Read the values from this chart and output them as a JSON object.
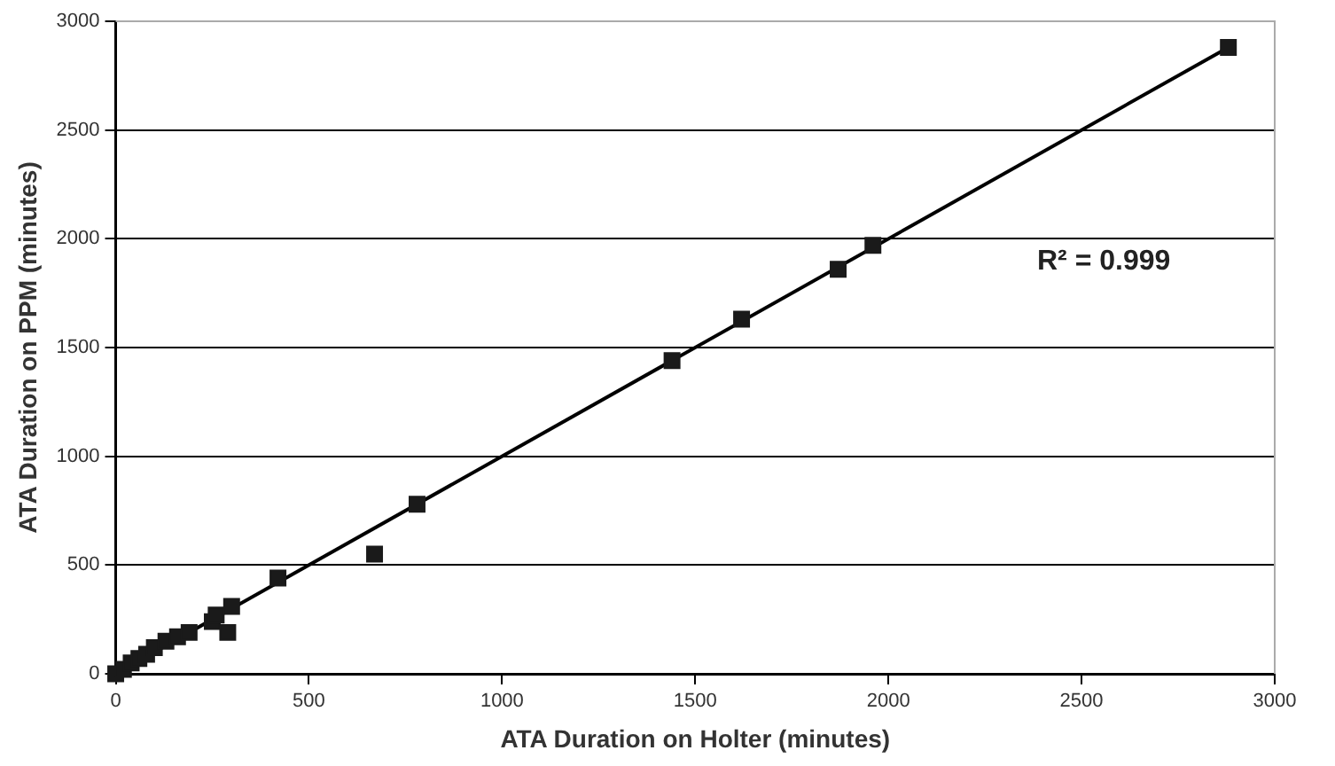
{
  "chart_data": {
    "type": "scatter",
    "xlabel": "ATA Duration on Holter (minutes)",
    "ylabel": "ATA Duration on PPM (minutes)",
    "xlim": [
      0,
      3000
    ],
    "xticks": [
      0,
      500,
      1000,
      1500,
      2000,
      2500,
      3000
    ],
    "ylim": [
      0,
      3000
    ],
    "yticks": [
      0,
      500,
      1000,
      1500,
      2000,
      2500,
      3000
    ],
    "grid": "y",
    "legend": false,
    "marker": "square",
    "series": [
      {
        "color": "#1a1a1a",
        "x": [
          0,
          20,
          40,
          60,
          80,
          100,
          130,
          160,
          190,
          250,
          260,
          290,
          300,
          420,
          670,
          780,
          1440,
          1620,
          1870,
          1960,
          2880
        ],
        "values": [
          0,
          20,
          50,
          70,
          90,
          120,
          150,
          170,
          190,
          240,
          270,
          190,
          310,
          440,
          550,
          780,
          1440,
          1630,
          1860,
          1970,
          2880
        ]
      },
      {
        "type": "line",
        "color": "#000000",
        "marker": "none",
        "x": [
          0,
          2880
        ],
        "values": [
          0,
          2880
        ]
      }
    ],
    "annotations": [
      "R² = 0.999"
    ]
  }
}
